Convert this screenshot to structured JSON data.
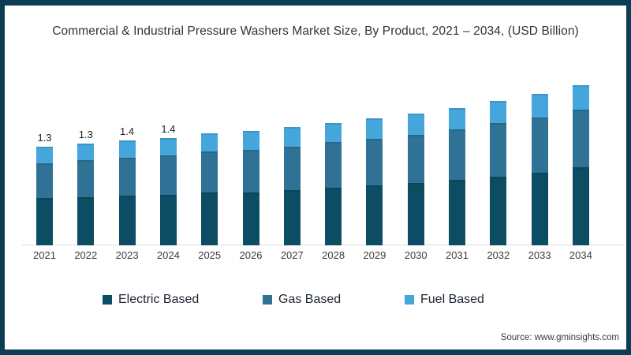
{
  "frame": {
    "border_color": "#0d3c55",
    "background": "#ffffff"
  },
  "title": "Commercial & Industrial Pressure Washers Market Size, By Product, 2021 – 2034, (USD Billion)",
  "source": "Source: www.gminsights.com",
  "chart_data": {
    "type": "bar",
    "stacked": true,
    "title": "Commercial & Industrial Pressure Washers Market Size, By Product, 2021 – 2034, (USD Billion)",
    "units": "USD Billion",
    "xlabel": "",
    "ylabel": "",
    "grid": false,
    "legend_position": "bottom",
    "axis_line_color": "#dcdcdc",
    "categories": [
      "2021",
      "2022",
      "2023",
      "2024",
      "2025",
      "2026",
      "2027",
      "2028",
      "2029",
      "2030",
      "2031",
      "2032",
      "2033",
      "2034"
    ],
    "series": [
      {
        "name": "Electric Based",
        "color": "#0d4d63",
        "values": [
          0.62,
          0.64,
          0.66,
          0.67,
          0.7,
          0.7,
          0.73,
          0.76,
          0.79,
          0.82,
          0.86,
          0.91,
          0.96,
          1.03
        ]
      },
      {
        "name": "Gas Based",
        "color": "#2f7296",
        "values": [
          0.46,
          0.48,
          0.5,
          0.52,
          0.54,
          0.56,
          0.57,
          0.6,
          0.62,
          0.64,
          0.67,
          0.7,
          0.73,
          0.76
        ]
      },
      {
        "name": "Fuel Based",
        "color": "#45a6dc",
        "values": [
          0.22,
          0.22,
          0.23,
          0.23,
          0.24,
          0.25,
          0.26,
          0.26,
          0.27,
          0.28,
          0.28,
          0.3,
          0.31,
          0.32
        ]
      }
    ],
    "total_labels": [
      "1.3",
      "1.3",
      "1.4",
      "1.4",
      "",
      "",
      "",
      "",
      "",
      "",
      "",
      "",
      "",
      ""
    ],
    "approx_totals": [
      1.3,
      1.34,
      1.39,
      1.42,
      1.48,
      1.51,
      1.56,
      1.62,
      1.68,
      1.74,
      1.81,
      1.91,
      2.0,
      2.11
    ],
    "ylim": [
      0,
      2.2
    ]
  }
}
